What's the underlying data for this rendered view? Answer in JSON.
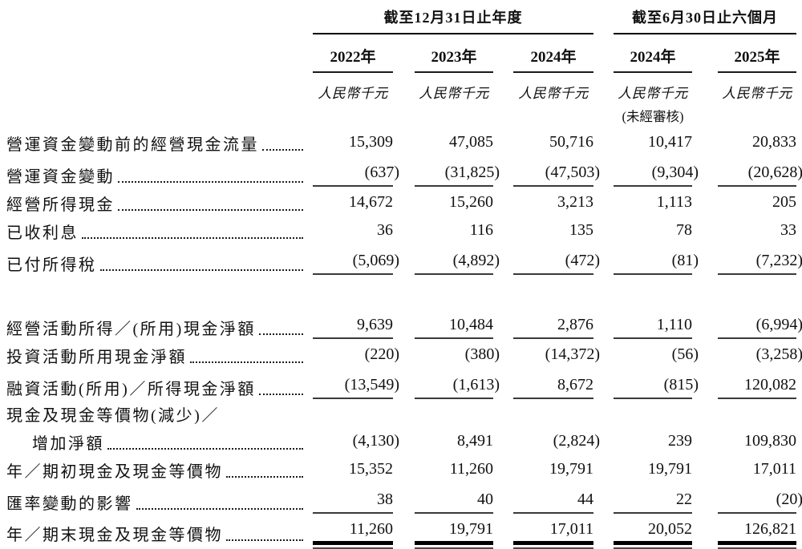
{
  "colors": {
    "text": "#101010",
    "rule": "#000000",
    "subrule": "#3a3a3a"
  },
  "table": {
    "col_groups": [
      {
        "title": "截至12月31日止年度",
        "span": 3
      },
      {
        "title": "截至6月30日止六個月",
        "span": 2
      }
    ],
    "columns": [
      {
        "year": "2022年",
        "unit": "人民幣千元",
        "note": ""
      },
      {
        "year": "2023年",
        "unit": "人民幣千元",
        "note": ""
      },
      {
        "year": "2024年",
        "unit": "人民幣千元",
        "note": ""
      },
      {
        "year": "2024年",
        "unit": "人民幣千元",
        "note": "(未經審核)"
      },
      {
        "year": "2025年",
        "unit": "人民幣千元",
        "note": ""
      }
    ],
    "rows": [
      {
        "label": "營運資金變動前的經營現金流量",
        "values": [
          "15,309",
          "47,085",
          "50,716",
          "10,417",
          "20,833"
        ]
      },
      {
        "label": "營運資金變動",
        "values": [
          "(637)",
          "(31,825)",
          "(47,503)",
          "(9,304)",
          "(20,628)"
        ]
      },
      {
        "label": "經營所得現金",
        "values": [
          "14,672",
          "15,260",
          "3,213",
          "1,113",
          "205"
        ]
      },
      {
        "label": "已收利息",
        "values": [
          "36",
          "116",
          "135",
          "78",
          "33"
        ]
      },
      {
        "label": "已付所得稅",
        "values": [
          "(5,069)",
          "(4,892)",
          "(472)",
          "(81)",
          "(7,232)"
        ]
      },
      {
        "label": "經營活動所得／(所用)現金淨額",
        "values": [
          "9,639",
          "10,484",
          "2,876",
          "1,110",
          "(6,994)"
        ]
      },
      {
        "label": "投資活動所用現金淨額",
        "values": [
          "(220)",
          "(380)",
          "(14,372)",
          "(56)",
          "(3,258)"
        ]
      },
      {
        "label": "融資活動(所用)／所得現金淨額",
        "values": [
          "(13,549)",
          "(1,613)",
          "8,672",
          "(815)",
          "120,082"
        ]
      },
      {
        "label": "現金及現金等價物(減少)／",
        "values": []
      },
      {
        "label": "增加淨額",
        "values": [
          "(4,130)",
          "8,491",
          "(2,824)",
          "239",
          "109,830"
        ]
      },
      {
        "label": "年／期初現金及現金等價物",
        "values": [
          "15,352",
          "11,260",
          "19,791",
          "19,791",
          "17,011"
        ]
      },
      {
        "label": "匯率變動的影響",
        "values": [
          "38",
          "40",
          "44",
          "22",
          "(20)"
        ]
      },
      {
        "label": "年／期末現金及現金等價物",
        "values": [
          "11,260",
          "19,791",
          "17,011",
          "20,052",
          "126,821"
        ]
      }
    ]
  }
}
